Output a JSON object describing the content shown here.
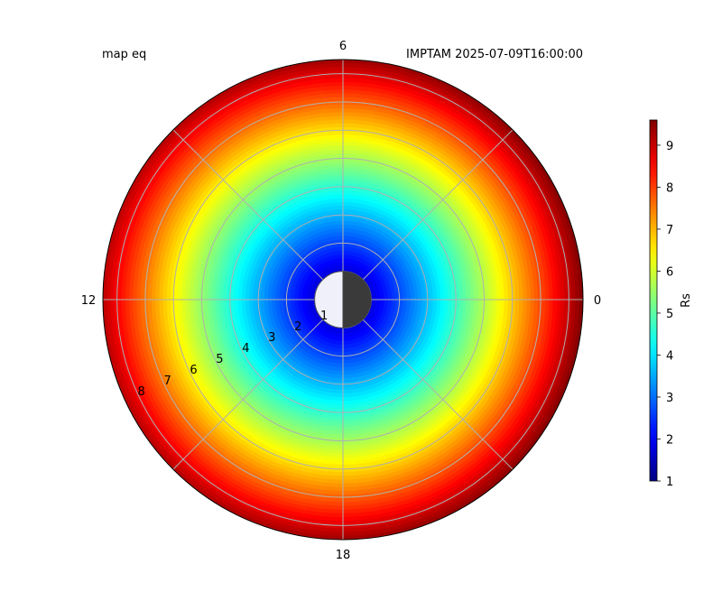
{
  "chart_data": {
    "type": "heatmap",
    "projection": "polar",
    "title_left": "map eq",
    "title_right": "IMPTAM 2025-07-09T16:00:00",
    "angular_ticks": [
      "0",
      "6",
      "12",
      "18"
    ],
    "radial_ticks": [
      "1",
      "2",
      "3",
      "4",
      "5",
      "6",
      "7",
      "8"
    ],
    "radial_range": [
      0,
      8.5
    ],
    "grid": true,
    "colorbar": {
      "label": "Rs",
      "range": [
        1,
        9.6
      ],
      "ticks": [
        "1",
        "2",
        "3",
        "4",
        "5",
        "6",
        "7",
        "8",
        "9"
      ],
      "colormap": "jet",
      "placement": "right"
    },
    "field": {
      "quantity": "Rs",
      "description_of_values": "radially increasing with distance, slightly larger on the 0 (right) side",
      "inner_value": 1.0,
      "outer_value_left": 9.1,
      "outer_value_right": 9.6
    },
    "earth_marker": {
      "day_color": "#f0f0fa",
      "night_color": "#3a3a3a"
    },
    "grid_color": "#b0b0b0"
  }
}
